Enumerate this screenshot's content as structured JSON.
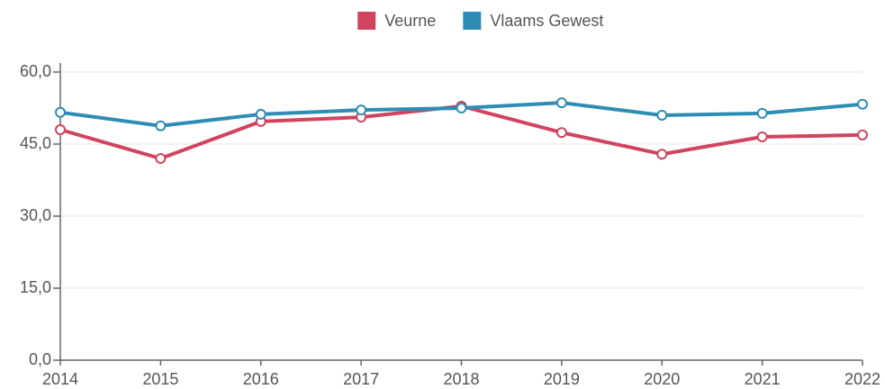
{
  "chart_data": {
    "type": "line",
    "categories": [
      "2014",
      "2015",
      "2016",
      "2017",
      "2018",
      "2019",
      "2020",
      "2021",
      "2022"
    ],
    "series": [
      {
        "name": "Veurne",
        "color": "#d0445f",
        "values": [
          48.0,
          42.0,
          49.7,
          50.6,
          52.9,
          47.4,
          42.9,
          46.5,
          46.9
        ]
      },
      {
        "name": "Vlaams Gewest",
        "color": "#2e8db5",
        "values": [
          51.6,
          48.8,
          51.2,
          52.1,
          52.5,
          53.6,
          51.0,
          51.4,
          53.3
        ]
      }
    ],
    "ylim": [
      0,
      60
    ],
    "yticks": [
      {
        "value": 0,
        "label": "0,0"
      },
      {
        "value": 15,
        "label": "15,0"
      },
      {
        "value": 30,
        "label": "30,0"
      },
      {
        "value": 45,
        "label": "45,0"
      },
      {
        "value": 60,
        "label": "60,0"
      }
    ],
    "grid": true,
    "legend": "top"
  }
}
